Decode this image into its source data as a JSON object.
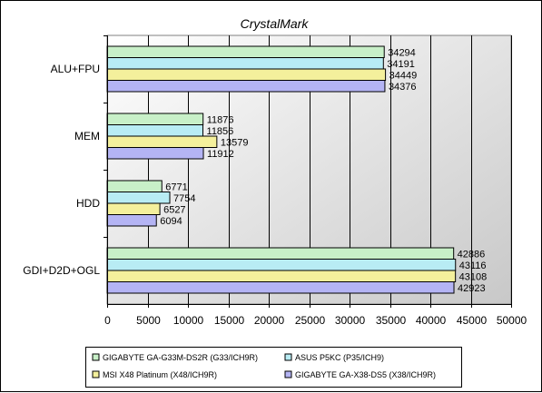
{
  "chart_data": {
    "type": "bar",
    "orientation": "horizontal",
    "title": "CrystalMark",
    "xlabel": "",
    "ylabel": "",
    "categories": [
      "ALU+FPU",
      "MEM",
      "HDD",
      "GDI+D2D+OGL"
    ],
    "series": [
      {
        "name": "GIGABYTE GA-G33M-DS2R (G33/ICH9R)",
        "color": "#c8f0c8",
        "values": [
          34294,
          11876,
          6771,
          42886
        ]
      },
      {
        "name": "ASUS P5KC (P35/ICH9)",
        "color": "#b8ecf4",
        "values": [
          34191,
          11856,
          7754,
          43116
        ]
      },
      {
        "name": "MSI X48 Platinum (X48/ICH9R)",
        "color": "#f4f09c",
        "values": [
          34449,
          13579,
          6527,
          43108
        ]
      },
      {
        "name": "GIGABYTE GA-X38-DS5 (X38/ICH9R)",
        "color": "#b4b4f4",
        "values": [
          34376,
          11912,
          6094,
          42923
        ]
      }
    ],
    "xlim": [
      0,
      50000
    ],
    "xticks": [
      0,
      5000,
      10000,
      15000,
      20000,
      25000,
      30000,
      35000,
      40000,
      45000,
      50000
    ],
    "grid": true,
    "legend_position": "bottom",
    "plot_background": "gradient-gray"
  }
}
